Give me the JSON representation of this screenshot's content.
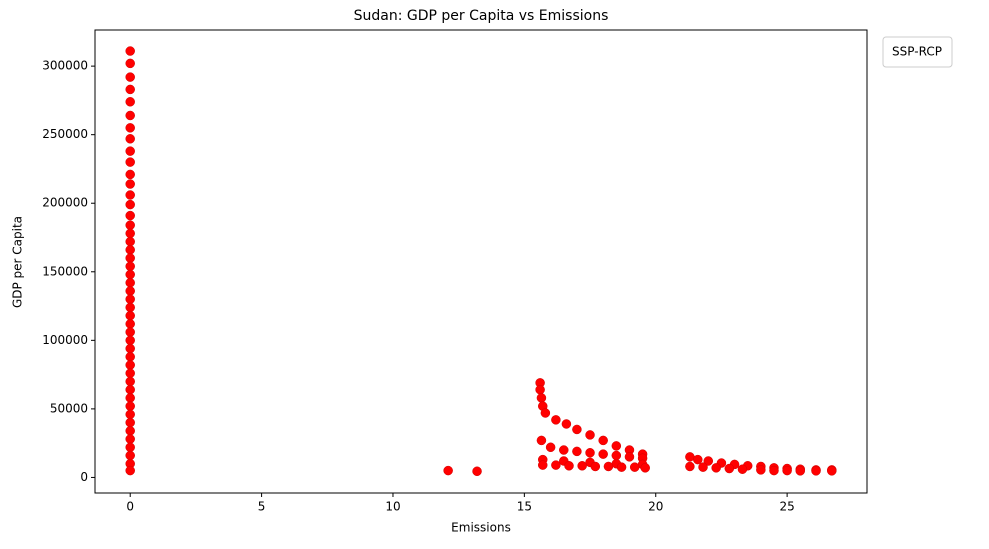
{
  "chart_data": {
    "type": "scatter",
    "title": "Sudan: GDP per Capita vs Emissions",
    "x_label": "Emissions",
    "y_label": "GDP per Capita",
    "legend_title": "SSP-RCP",
    "color": "#ff0000",
    "grid": false,
    "xlim": [
      -1.34,
      28.04
    ],
    "xticks": [
      0,
      5,
      10,
      15,
      20,
      25
    ],
    "ylim": [
      -11350,
      326350
    ],
    "yticks": [
      0,
      50000,
      100000,
      150000,
      200000,
      250000,
      300000
    ],
    "x": [
      0,
      0,
      0,
      0,
      0,
      0,
      0,
      0,
      0,
      0,
      0,
      0,
      0,
      0,
      0,
      0,
      0,
      0,
      0,
      0,
      0,
      0,
      0,
      0,
      0,
      0,
      0,
      0,
      0,
      0,
      0,
      0,
      0,
      0,
      0,
      0,
      0,
      0,
      0,
      0,
      0,
      0,
      0,
      0,
      0,
      0,
      12.1,
      13.2,
      15.6,
      15.6,
      15.65,
      15.7,
      15.8,
      16.2,
      16.6,
      17.0,
      17.5,
      18.0,
      18.5,
      19.0,
      19.5,
      15.65,
      16.0,
      16.5,
      17.0,
      17.5,
      18.0,
      18.5,
      19.0,
      19.5,
      15.7,
      16.5,
      17.5,
      18.5,
      19.5,
      15.7,
      16.2,
      16.7,
      17.2,
      17.7,
      18.2,
      18.7,
      19.2,
      19.6,
      21.3,
      21.6,
      22.0,
      22.5,
      23.0,
      23.5,
      24.0,
      24.5,
      25.0,
      25.5,
      26.1,
      26.7,
      21.3,
      21.8,
      22.3,
      22.8,
      23.3,
      24.0,
      24.5,
      25.0,
      25.5,
      26.1,
      26.7
    ],
    "values": [
      311000,
      302000,
      292000,
      283000,
      274000,
      264000,
      255000,
      247000,
      238000,
      230000,
      221000,
      214000,
      206000,
      199000,
      191000,
      184000,
      178000,
      172000,
      166000,
      160000,
      154000,
      148000,
      142000,
      136000,
      130000,
      124000,
      118000,
      112000,
      106000,
      100000,
      94000,
      88000,
      82000,
      76000,
      70000,
      64000,
      58000,
      52000,
      46000,
      40000,
      34000,
      28000,
      22000,
      16000,
      10000,
      5000,
      5000,
      4500,
      69000,
      64000,
      58000,
      52000,
      47000,
      42000,
      39000,
      35000,
      31000,
      27000,
      23000,
      20000,
      17000,
      27000,
      22000,
      20000,
      19000,
      18000,
      17000,
      16000,
      15000,
      14000,
      13000,
      12000,
      11000,
      10000,
      9500,
      9000,
      9000,
      8500,
      8500,
      8000,
      8000,
      7500,
      7500,
      7000,
      15000,
      13000,
      12000,
      10500,
      9500,
      8500,
      8000,
      7000,
      6500,
      6000,
      5500,
      5500,
      8000,
      7500,
      7000,
      6500,
      6000,
      5500,
      5000,
      5000,
      4800,
      4800,
      4800
    ]
  }
}
